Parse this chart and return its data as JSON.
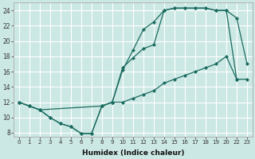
{
  "xlabel": "Humidex (Indice chaleur)",
  "bg_color": "#cce8e4",
  "line_color": "#1a6b60",
  "grid_color": "#ffffff",
  "xlim": [
    -0.5,
    22.5
  ],
  "ylim": [
    7.5,
    25
  ],
  "xtick_positions": [
    0,
    1,
    2,
    3,
    4,
    5,
    6,
    7,
    8,
    9,
    10,
    11,
    12,
    13,
    14,
    15,
    16,
    17,
    18,
    19,
    20,
    21,
    22
  ],
  "xtick_labels": [
    "0",
    "1",
    "2",
    "3",
    "4",
    "5",
    "6",
    "7",
    "8",
    "9",
    "10",
    "11",
    "12",
    "13",
    "14",
    "15",
    "16",
    "17",
    "18",
    "19",
    "20",
    "22",
    "23"
  ],
  "yticks": [
    8,
    10,
    12,
    14,
    16,
    18,
    20,
    22,
    24
  ],
  "line1_x": [
    0,
    1,
    2,
    3,
    4,
    5,
    6,
    7,
    8,
    9,
    10,
    11,
    12,
    13,
    14,
    15,
    16,
    17,
    18,
    19,
    20,
    21
  ],
  "line1_y": [
    12,
    11.5,
    11,
    10,
    9.2,
    8.8,
    7.9,
    7.9,
    11.5,
    12,
    16.2,
    18.8,
    21.5,
    22.5,
    24,
    24.3,
    24.3,
    24.3,
    24.3,
    24,
    24,
    15
  ],
  "line2_x": [
    0,
    1,
    2,
    8,
    9,
    10,
    11,
    12,
    13,
    14,
    15,
    16,
    17,
    18,
    19,
    20,
    21,
    22
  ],
  "line2_y": [
    12,
    11.5,
    11,
    11.5,
    12,
    16.5,
    17.8,
    19,
    19.5,
    24,
    24.3,
    24.3,
    24.3,
    24.3,
    24,
    24,
    23,
    17
  ],
  "line3_x": [
    0,
    1,
    2,
    3,
    4,
    5,
    6,
    7,
    8,
    9,
    10,
    11,
    12,
    13,
    14,
    15,
    16,
    17,
    18,
    19,
    20,
    21,
    22
  ],
  "line3_y": [
    12,
    11.5,
    11,
    10,
    9.2,
    8.8,
    7.9,
    7.9,
    11.5,
    12,
    12,
    12.5,
    13,
    13.5,
    14.5,
    15,
    15.5,
    16,
    16.5,
    17,
    18,
    15,
    15
  ]
}
